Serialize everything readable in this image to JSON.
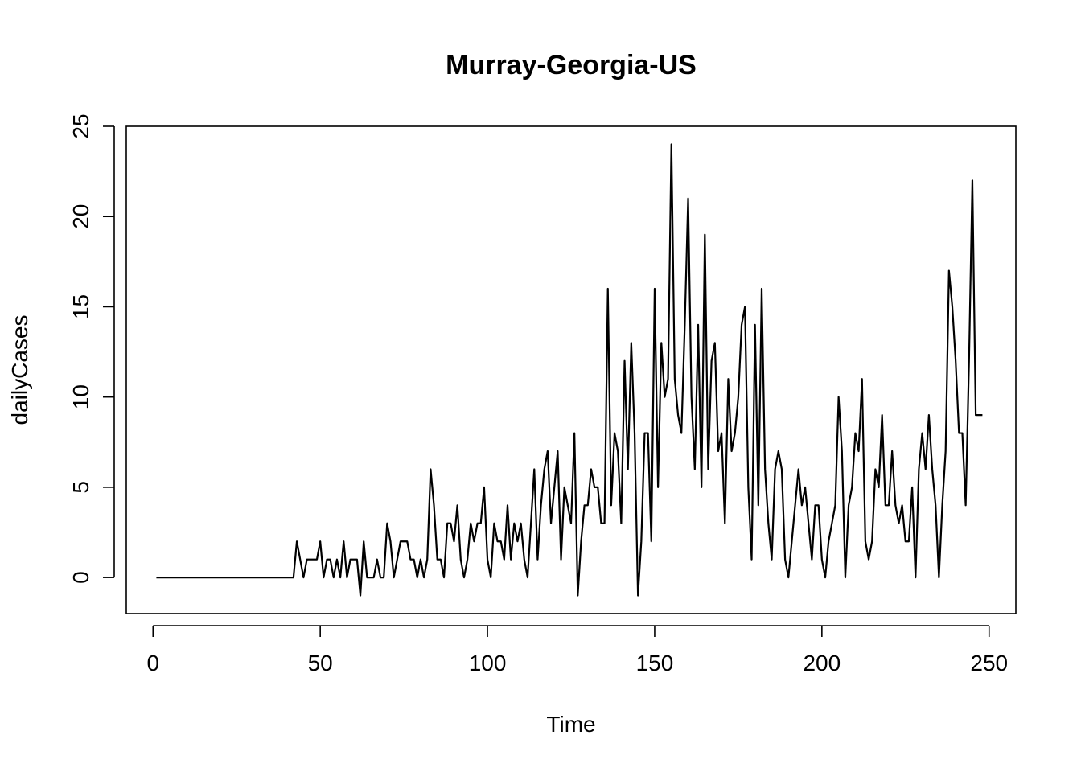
{
  "chart_data": {
    "type": "line",
    "title": "Murray-Georgia-US",
    "xlabel": "Time",
    "ylabel": "dailyCases",
    "xlim": [
      -8,
      258
    ],
    "ylim": [
      -2,
      25
    ],
    "xticks": [
      0,
      50,
      100,
      150,
      200,
      250
    ],
    "yticks": [
      0,
      5,
      10,
      15,
      20,
      25
    ],
    "grid": false,
    "x_start": 1,
    "series": [
      {
        "values": [
          0,
          0,
          0,
          0,
          0,
          0,
          0,
          0,
          0,
          0,
          0,
          0,
          0,
          0,
          0,
          0,
          0,
          0,
          0,
          0,
          0,
          0,
          0,
          0,
          0,
          0,
          0,
          0,
          0,
          0,
          0,
          0,
          0,
          0,
          0,
          0,
          0,
          0,
          0,
          0,
          0,
          0,
          2,
          1,
          0,
          1,
          1,
          1,
          1,
          2,
          0,
          1,
          1,
          0,
          1,
          0,
          2,
          0,
          1,
          1,
          1,
          -1,
          2,
          0,
          0,
          0,
          1,
          0,
          0,
          3,
          2,
          0,
          1,
          2,
          2,
          2,
          1,
          1,
          0,
          1,
          0,
          1,
          6,
          4,
          1,
          1,
          0,
          3,
          3,
          2,
          4,
          1,
          0,
          1,
          3,
          2,
          3,
          3,
          5,
          1,
          0,
          3,
          2,
          2,
          1,
          4,
          1,
          3,
          2,
          3,
          1,
          0,
          3,
          6,
          1,
          4,
          6,
          7,
          3,
          5,
          7,
          1,
          5,
          4,
          3,
          8,
          -1,
          2,
          4,
          4,
          6,
          5,
          5,
          3,
          3,
          16,
          4,
          8,
          7,
          3,
          12,
          6,
          13,
          8,
          -1,
          2,
          8,
          8,
          2,
          16,
          5,
          13,
          10,
          11,
          24,
          11,
          9,
          8,
          14,
          21,
          10,
          6,
          14,
          5,
          19,
          6,
          12,
          13,
          7,
          8,
          3,
          11,
          7,
          8,
          10,
          14,
          15,
          5,
          1,
          14,
          4,
          16,
          6,
          3,
          1,
          6,
          7,
          6,
          1,
          0,
          2,
          4,
          6,
          4,
          5,
          3,
          1,
          4,
          4,
          1,
          0,
          2,
          3,
          4,
          10,
          7,
          0,
          4,
          5,
          8,
          7,
          11,
          2,
          1,
          2,
          6,
          5,
          9,
          4,
          4,
          7,
          4,
          3,
          4,
          2,
          2,
          5,
          0,
          6,
          8,
          6,
          9,
          6,
          4,
          0,
          4,
          7,
          17,
          15,
          12,
          8,
          8,
          4,
          12,
          22,
          9,
          9,
          9
        ]
      }
    ]
  }
}
